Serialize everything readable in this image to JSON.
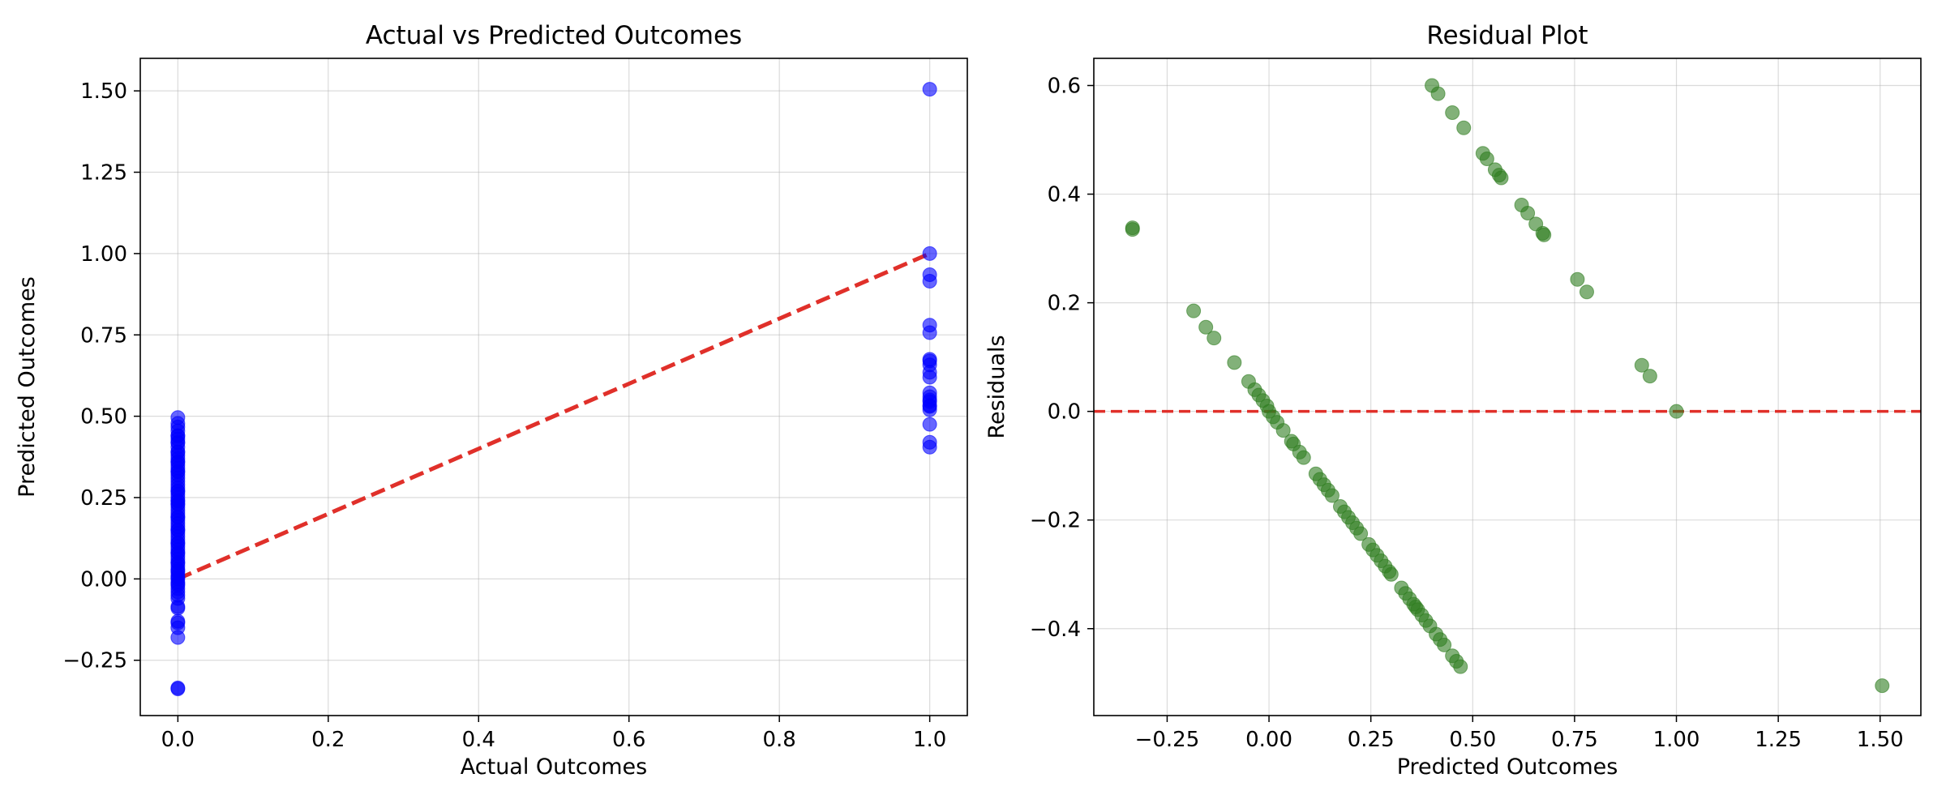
{
  "colors": {
    "actual_points": "#0000ff",
    "residual_points": "#2e7d1f",
    "reference_line": "#e0302a",
    "grid": "#b0b0b0"
  },
  "chart_data": [
    {
      "type": "scatter",
      "title": "Actual vs Predicted Outcomes",
      "xlabel": "Actual Outcomes",
      "ylabel": "Predicted Outcomes",
      "xlim": [
        -0.05,
        1.05
      ],
      "ylim": [
        -0.42,
        1.6
      ],
      "xticks": [
        0.0,
        0.2,
        0.4,
        0.6,
        0.8,
        1.0
      ],
      "xtick_labels": [
        "0.0",
        "0.2",
        "0.4",
        "0.6",
        "0.8",
        "1.0"
      ],
      "yticks": [
        -0.25,
        0.0,
        0.25,
        0.5,
        0.75,
        1.0,
        1.25,
        1.5
      ],
      "ytick_labels": [
        "−0.25",
        "0.00",
        "0.25",
        "0.50",
        "0.75",
        "1.00",
        "1.25",
        "1.50"
      ],
      "grid": true,
      "points": {
        "x": [
          0,
          0,
          0,
          0,
          0,
          0,
          0,
          0,
          0,
          0,
          0,
          0,
          0,
          0,
          0,
          0,
          0,
          0,
          0,
          0,
          0,
          0,
          0,
          0,
          0,
          0,
          0,
          0,
          0,
          0,
          0,
          0,
          0,
          0,
          0,
          0,
          0,
          0,
          0,
          0,
          0,
          0,
          0,
          0,
          0,
          0,
          0,
          0,
          0,
          0,
          0,
          0,
          0,
          0,
          0,
          0,
          0,
          0,
          0,
          0,
          0,
          0,
          0,
          0,
          0,
          0,
          0,
          0,
          0,
          0,
          0,
          0,
          0,
          0,
          0,
          0,
          0,
          0,
          1,
          1,
          1,
          1,
          1,
          1,
          1,
          1,
          1,
          1,
          1,
          1,
          1,
          1,
          1,
          1,
          1,
          1,
          1,
          1,
          1
        ],
        "y": [
          0.496,
          0.478,
          0.467,
          0.455,
          0.44,
          0.43,
          0.418,
          0.405,
          0.39,
          0.38,
          0.37,
          0.36,
          0.35,
          0.34,
          0.33,
          0.32,
          0.31,
          0.3,
          0.29,
          0.28,
          0.27,
          0.26,
          0.25,
          0.24,
          0.23,
          0.22,
          0.21,
          0.2,
          0.19,
          0.18,
          0.17,
          0.16,
          0.15,
          0.14,
          0.13,
          0.12,
          0.11,
          0.1,
          0.09,
          0.08,
          0.07,
          0.06,
          0.05,
          0.04,
          0.03,
          0.02,
          0.01,
          0.0,
          -0.01,
          -0.02,
          -0.03,
          -0.04,
          -0.05,
          -0.06,
          -0.085,
          -0.09,
          -0.13,
          -0.135,
          -0.15,
          -0.18,
          -0.335,
          -0.338,
          0.36,
          0.27,
          0.19,
          0.11,
          0.05,
          0.025,
          0.005,
          -0.015,
          0.23,
          0.33,
          0.15,
          0.42,
          0.24,
          0.08,
          0.39,
          0.44,
          1.505,
          1.0,
          0.935,
          0.915,
          0.78,
          0.757,
          0.675,
          0.658,
          0.635,
          0.62,
          0.572,
          0.56,
          0.545,
          0.533,
          0.52,
          0.475,
          0.42,
          0.405,
          0.67,
          0.55,
          0.53
        ]
      },
      "reference_line": {
        "x": [
          0,
          1
        ],
        "y": [
          0,
          1
        ]
      }
    },
    {
      "type": "scatter",
      "title": "Residual Plot",
      "xlabel": "Predicted Outcomes",
      "ylabel": "Residuals",
      "xlim": [
        -0.43,
        1.6
      ],
      "ylim": [
        -0.56,
        0.65
      ],
      "xticks": [
        -0.25,
        0.0,
        0.25,
        0.5,
        0.75,
        1.0,
        1.25,
        1.5
      ],
      "xtick_labels": [
        "−0.25",
        "0.00",
        "0.25",
        "0.50",
        "0.75",
        "1.00",
        "1.25",
        "1.50"
      ],
      "yticks": [
        -0.4,
        -0.2,
        0.0,
        0.2,
        0.4,
        0.6
      ],
      "ytick_labels": [
        "−0.4",
        "−0.2",
        "0.0",
        "0.2",
        "0.4",
        "0.6"
      ],
      "grid": true,
      "points": {
        "x": [
          -0.335,
          -0.335,
          -0.185,
          -0.155,
          -0.135,
          -0.085,
          -0.05,
          -0.035,
          -0.025,
          -0.015,
          -0.005,
          0.0,
          0.01,
          0.02,
          0.035,
          0.055,
          0.06,
          0.075,
          0.085,
          0.115,
          0.125,
          0.135,
          0.145,
          0.155,
          0.175,
          0.185,
          0.195,
          0.205,
          0.215,
          0.225,
          0.245,
          0.255,
          0.265,
          0.275,
          0.285,
          0.295,
          0.3,
          0.325,
          0.335,
          0.345,
          0.355,
          0.36,
          0.365,
          0.375,
          0.385,
          0.395,
          0.41,
          0.42,
          0.43,
          0.45,
          0.46,
          0.47,
          0.4,
          0.415,
          0.45,
          0.478,
          0.525,
          0.535,
          0.555,
          0.565,
          0.57,
          0.62,
          0.635,
          0.655,
          0.672,
          0.675,
          0.757,
          0.78,
          0.915,
          0.935,
          1.0,
          1.505
        ],
        "y": [
          0.335,
          0.338,
          0.185,
          0.155,
          0.135,
          0.09,
          0.055,
          0.04,
          0.03,
          0.02,
          0.01,
          0.0,
          -0.01,
          -0.02,
          -0.035,
          -0.055,
          -0.06,
          -0.075,
          -0.085,
          -0.115,
          -0.125,
          -0.135,
          -0.145,
          -0.155,
          -0.175,
          -0.185,
          -0.195,
          -0.205,
          -0.215,
          -0.225,
          -0.245,
          -0.255,
          -0.265,
          -0.275,
          -0.285,
          -0.295,
          -0.3,
          -0.325,
          -0.335,
          -0.345,
          -0.355,
          -0.36,
          -0.365,
          -0.375,
          -0.385,
          -0.395,
          -0.41,
          -0.42,
          -0.43,
          -0.45,
          -0.46,
          -0.47,
          0.6,
          0.585,
          0.55,
          0.522,
          0.475,
          0.465,
          0.445,
          0.435,
          0.43,
          0.38,
          0.365,
          0.345,
          0.328,
          0.325,
          0.243,
          0.22,
          0.085,
          0.065,
          0.0,
          -0.505
        ]
      },
      "reference_line": {
        "y": 0
      }
    }
  ]
}
